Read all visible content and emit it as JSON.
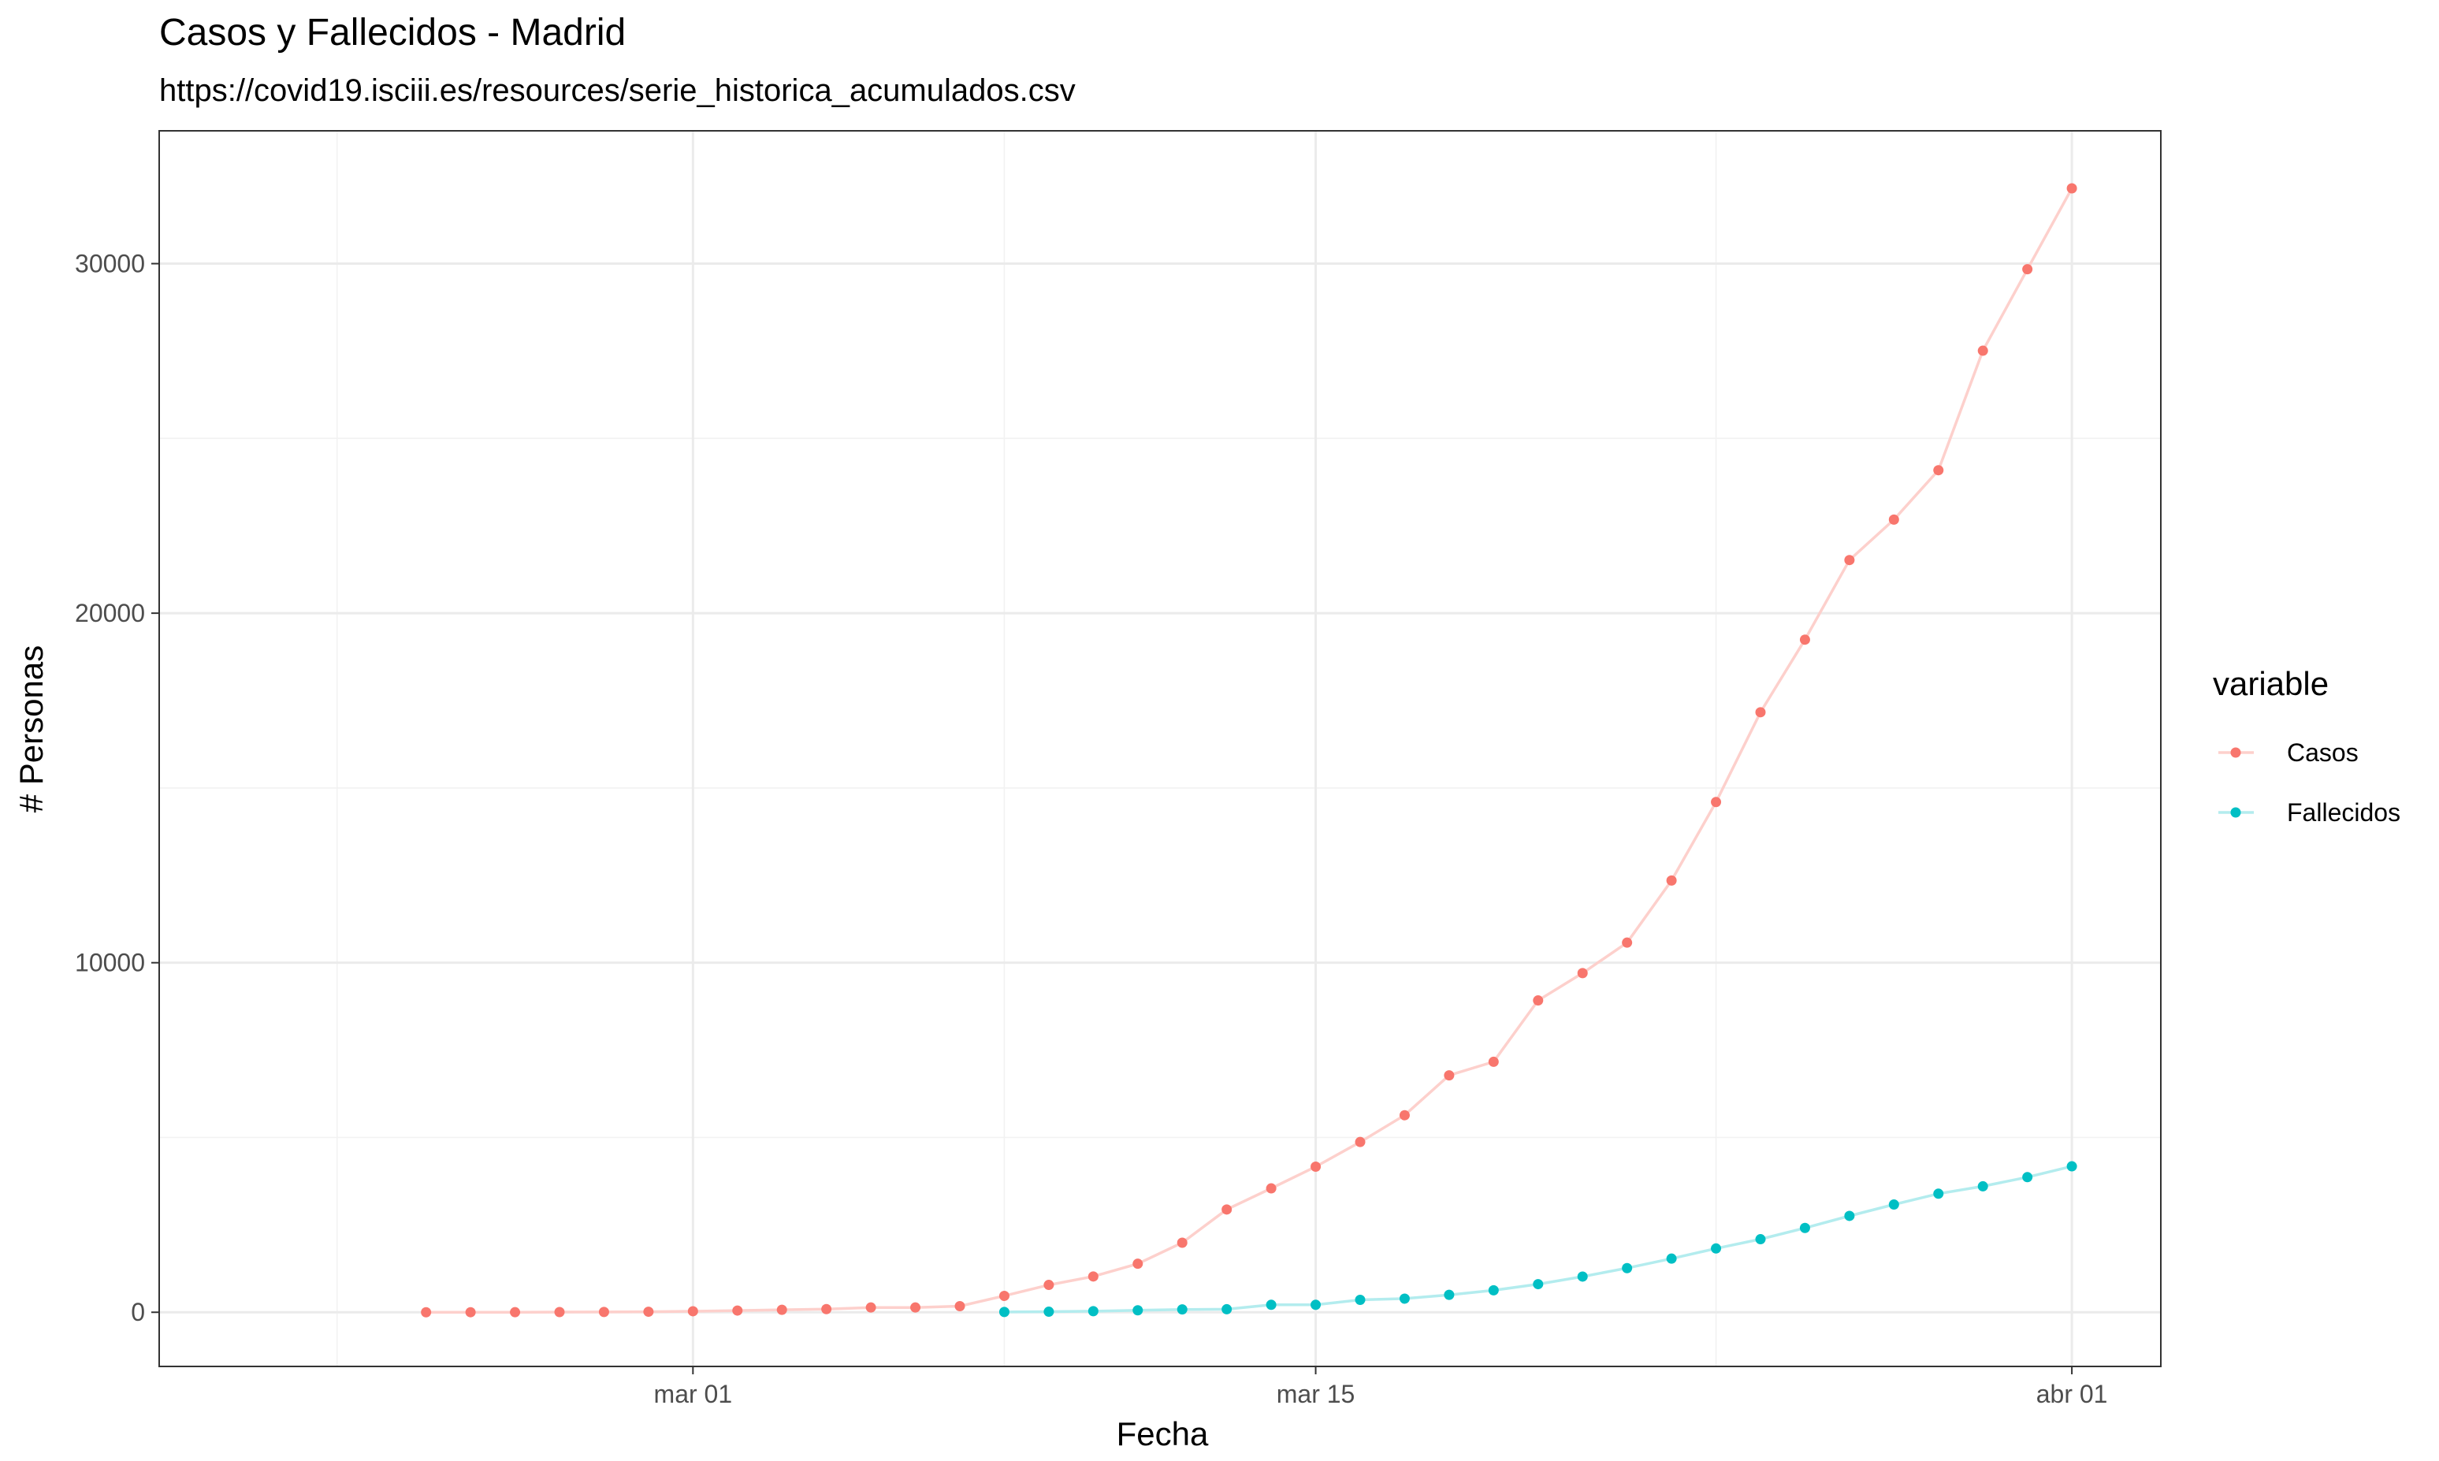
{
  "chart_data": {
    "type": "line",
    "title": "Casos y Fallecidos - Madrid",
    "subtitle": "https://covid19.isciii.es/resources/serie_historica_acumulados.csv",
    "xlabel": "Fecha",
    "ylabel": "# Personas",
    "xlim": [
      "2020-02-18",
      "2020-04-03"
    ],
    "ylim": [
      -1550,
      33800
    ],
    "x_ticks": [
      {
        "date": "2020-03-01",
        "label": "mar 01"
      },
      {
        "date": "2020-03-15",
        "label": "mar 15"
      },
      {
        "date": "2020-04-01",
        "label": "abr 01"
      }
    ],
    "x_minor_ticks": [
      "2020-02-22",
      "2020-03-08",
      "2020-03-24"
    ],
    "y_ticks": [
      0,
      10000,
      20000,
      30000
    ],
    "y_minor_ticks": [
      5000,
      15000,
      25000
    ],
    "grid": true,
    "legend": {
      "title": "variable",
      "placement": "right"
    },
    "series": [
      {
        "name": "Casos",
        "color": "#f8766d",
        "line_color": "#fdd0cc",
        "points": [
          {
            "x": "2020-02-24",
            "y": 0
          },
          {
            "x": "2020-02-25",
            "y": 1
          },
          {
            "x": "2020-02-26",
            "y": 2
          },
          {
            "x": "2020-02-27",
            "y": 5
          },
          {
            "x": "2020-02-28",
            "y": 8
          },
          {
            "x": "2020-02-29",
            "y": 15
          },
          {
            "x": "2020-03-01",
            "y": 29
          },
          {
            "x": "2020-03-02",
            "y": 49
          },
          {
            "x": "2020-03-03",
            "y": 70
          },
          {
            "x": "2020-03-04",
            "y": 90
          },
          {
            "x": "2020-03-05",
            "y": 137
          },
          {
            "x": "2020-03-06",
            "y": 137
          },
          {
            "x": "2020-03-07",
            "y": 174
          },
          {
            "x": "2020-03-08",
            "y": 469
          },
          {
            "x": "2020-03-09",
            "y": 782
          },
          {
            "x": "2020-03-10",
            "y": 1024
          },
          {
            "x": "2020-03-11",
            "y": 1388
          },
          {
            "x": "2020-03-12",
            "y": 1990
          },
          {
            "x": "2020-03-13",
            "y": 2940
          },
          {
            "x": "2020-03-14",
            "y": 3544
          },
          {
            "x": "2020-03-15",
            "y": 4165
          },
          {
            "x": "2020-03-16",
            "y": 4871
          },
          {
            "x": "2020-03-17",
            "y": 5637
          },
          {
            "x": "2020-03-18",
            "y": 6777
          },
          {
            "x": "2020-03-19",
            "y": 7165
          },
          {
            "x": "2020-03-20",
            "y": 8921
          },
          {
            "x": "2020-03-21",
            "y": 9702
          },
          {
            "x": "2020-03-22",
            "y": 10575
          },
          {
            "x": "2020-03-23",
            "y": 12352
          },
          {
            "x": "2020-03-24",
            "y": 14597
          },
          {
            "x": "2020-03-25",
            "y": 17166
          },
          {
            "x": "2020-03-26",
            "y": 19243
          },
          {
            "x": "2020-03-27",
            "y": 21520
          },
          {
            "x": "2020-03-28",
            "y": 22677
          },
          {
            "x": "2020-03-29",
            "y": 24090
          },
          {
            "x": "2020-03-30",
            "y": 27509
          },
          {
            "x": "2020-03-31",
            "y": 29840
          },
          {
            "x": "2020-04-01",
            "y": 32155
          }
        ]
      },
      {
        "name": "Fallecidos",
        "color": "#00bfc4",
        "line_color": "#b3ecee",
        "points": [
          {
            "x": "2020-03-08",
            "y": 8
          },
          {
            "x": "2020-03-09",
            "y": 16
          },
          {
            "x": "2020-03-10",
            "y": 31
          },
          {
            "x": "2020-03-11",
            "y": 56
          },
          {
            "x": "2020-03-12",
            "y": 81
          },
          {
            "x": "2020-03-13",
            "y": 86
          },
          {
            "x": "2020-03-14",
            "y": 213
          },
          {
            "x": "2020-03-15",
            "y": 213
          },
          {
            "x": "2020-03-16",
            "y": 355
          },
          {
            "x": "2020-03-17",
            "y": 390
          },
          {
            "x": "2020-03-18",
            "y": 498
          },
          {
            "x": "2020-03-19",
            "y": 628
          },
          {
            "x": "2020-03-20",
            "y": 804
          },
          {
            "x": "2020-03-21",
            "y": 1021
          },
          {
            "x": "2020-03-22",
            "y": 1263
          },
          {
            "x": "2020-03-23",
            "y": 1535
          },
          {
            "x": "2020-03-24",
            "y": 1825
          },
          {
            "x": "2020-03-25",
            "y": 2090
          },
          {
            "x": "2020-03-26",
            "y": 2412
          },
          {
            "x": "2020-03-27",
            "y": 2757
          },
          {
            "x": "2020-03-28",
            "y": 3082
          },
          {
            "x": "2020-03-29",
            "y": 3392
          },
          {
            "x": "2020-03-30",
            "y": 3603
          },
          {
            "x": "2020-03-31",
            "y": 3865
          },
          {
            "x": "2020-04-01",
            "y": 4175
          }
        ]
      }
    ]
  }
}
